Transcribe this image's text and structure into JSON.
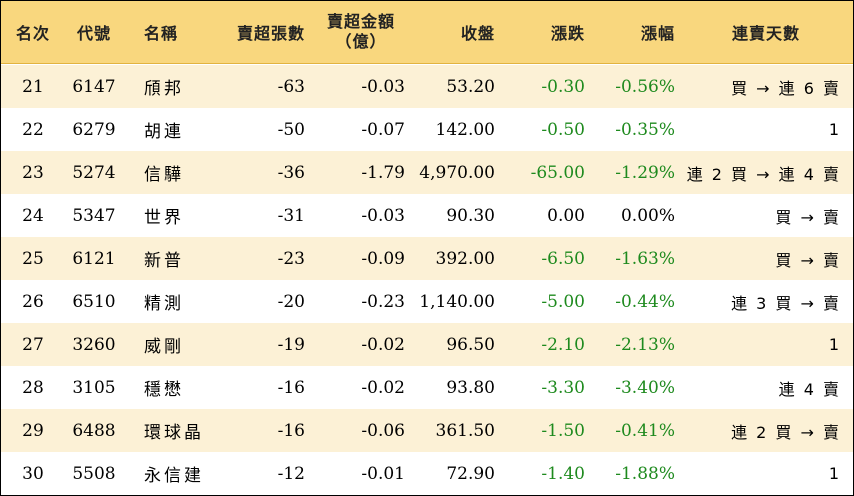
{
  "header": {
    "rank": "名次",
    "code": "代號",
    "name": "名稱",
    "sell_lots": "賣超張數",
    "sell_amount_line1": "賣超金額",
    "sell_amount_line2": "（億）",
    "close": "收盤",
    "change": "漲跌",
    "change_pct": "漲幅",
    "streak": "連賣天數"
  },
  "rows": [
    {
      "rank": "21",
      "code": "6147",
      "name": "頎邦",
      "lots": "-63",
      "amount": "-0.03",
      "close": "53.20",
      "change": "-0.30",
      "pct": "-0.56%",
      "streak": "買 → 連 6 賣"
    },
    {
      "rank": "22",
      "code": "6279",
      "name": "胡連",
      "lots": "-50",
      "amount": "-0.07",
      "close": "142.00",
      "change": "-0.50",
      "pct": "-0.35%",
      "streak": "1"
    },
    {
      "rank": "23",
      "code": "5274",
      "name": "信驊",
      "lots": "-36",
      "amount": "-1.79",
      "close": "4,970.00",
      "change": "-65.00",
      "pct": "-1.29%",
      "streak": "連 2 買 → 連 4 賣"
    },
    {
      "rank": "24",
      "code": "5347",
      "name": "世界",
      "lots": "-31",
      "amount": "-0.03",
      "close": "90.30",
      "change": "0.00",
      "pct": "0.00%",
      "streak": "買 → 賣"
    },
    {
      "rank": "25",
      "code": "6121",
      "name": "新普",
      "lots": "-23",
      "amount": "-0.09",
      "close": "392.00",
      "change": "-6.50",
      "pct": "-1.63%",
      "streak": "買 → 賣"
    },
    {
      "rank": "26",
      "code": "6510",
      "name": "精測",
      "lots": "-20",
      "amount": "-0.23",
      "close": "1,140.00",
      "change": "-5.00",
      "pct": "-0.44%",
      "streak": "連 3 買 → 賣"
    },
    {
      "rank": "27",
      "code": "3260",
      "name": "威剛",
      "lots": "-19",
      "amount": "-0.02",
      "close": "96.50",
      "change": "-2.10",
      "pct": "-2.13%",
      "streak": "1"
    },
    {
      "rank": "28",
      "code": "3105",
      "name": "穩懋",
      "lots": "-16",
      "amount": "-0.02",
      "close": "93.80",
      "change": "-3.30",
      "pct": "-3.40%",
      "streak": "連 4 賣"
    },
    {
      "rank": "29",
      "code": "6488",
      "name": "環球晶",
      "lots": "-16",
      "amount": "-0.06",
      "close": "361.50",
      "change": "-1.50",
      "pct": "-0.41%",
      "streak": "連 2 買 → 賣"
    },
    {
      "rank": "30",
      "code": "5508",
      "name": "永信建",
      "lots": "-12",
      "amount": "-0.01",
      "close": "72.90",
      "change": "-1.40",
      "pct": "-1.88%",
      "streak": "1"
    }
  ],
  "colors": {
    "header_bg": "#f9d77e",
    "odd_row_bg": "#fcf1d6",
    "even_row_bg": "#ffffff",
    "negative": "#1e8a1e"
  }
}
